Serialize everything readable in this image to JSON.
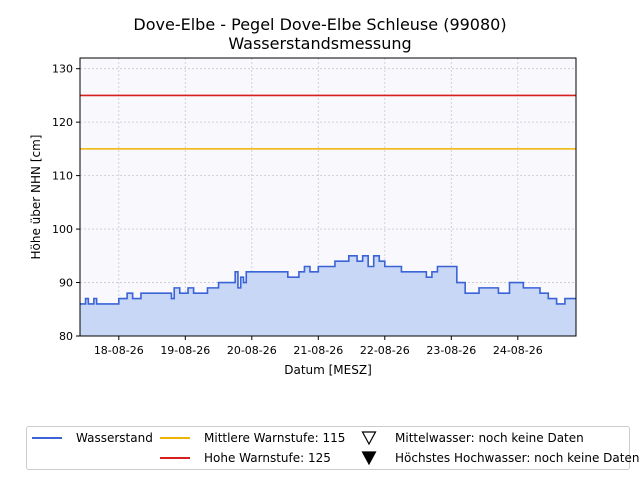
{
  "chart_data": {
    "type": "area",
    "title": "Dove-Elbe - Pegel Dove-Elbe Schleuse (99080)",
    "subtitle": "Wasserstandsmessung",
    "xlabel": "Datum [MESZ]",
    "ylabel": "Höhe über NHN [cm]",
    "ylim": [
      80,
      132
    ],
    "yticks": [
      80,
      90,
      100,
      110,
      120,
      130
    ],
    "xlim": [
      "2026-08-17 10:00",
      "2026-08-24 21:00"
    ],
    "xticks": [
      "18-08-26",
      "19-08-26",
      "20-08-26",
      "21-08-26",
      "22-08-26",
      "23-08-26",
      "24-08-26"
    ],
    "xtick_dates": [
      "2026-08-18 00:00",
      "2026-08-19 00:00",
      "2026-08-20 00:00",
      "2026-08-21 00:00",
      "2026-08-22 00:00",
      "2026-08-23 00:00",
      "2026-08-24 00:00"
    ],
    "grid": true,
    "legend_position": "bottom",
    "series": [
      {
        "name": "Wasserstand",
        "color": "#3a63d6",
        "fill": "#c8d7f5",
        "x": [
          "2026-08-17 10:00",
          "2026-08-17 12:00",
          "2026-08-17 13:00",
          "2026-08-17 15:00",
          "2026-08-17 16:00",
          "2026-08-17 18:00",
          "2026-08-17 20:00",
          "2026-08-18 00:00",
          "2026-08-18 03:00",
          "2026-08-18 05:00",
          "2026-08-18 06:00",
          "2026-08-18 08:00",
          "2026-08-18 11:00",
          "2026-08-18 14:00",
          "2026-08-18 17:00",
          "2026-08-18 19:00",
          "2026-08-18 20:00",
          "2026-08-18 22:00",
          "2026-08-19 01:00",
          "2026-08-19 03:00",
          "2026-08-19 06:00",
          "2026-08-19 08:00",
          "2026-08-19 12:00",
          "2026-08-19 15:00",
          "2026-08-19 17:00",
          "2026-08-19 18:00",
          "2026-08-19 19:00",
          "2026-08-19 20:00",
          "2026-08-19 21:00",
          "2026-08-19 22:00",
          "2026-08-20 00:00",
          "2026-08-20 02:00",
          "2026-08-20 03:00",
          "2026-08-20 04:00",
          "2026-08-20 06:00",
          "2026-08-20 09:00",
          "2026-08-20 13:00",
          "2026-08-20 16:00",
          "2026-08-20 17:00",
          "2026-08-20 19:00",
          "2026-08-20 21:00",
          "2026-08-21 00:00",
          "2026-08-21 03:00",
          "2026-08-21 06:00",
          "2026-08-21 09:00",
          "2026-08-21 11:00",
          "2026-08-21 14:00",
          "2026-08-21 16:00",
          "2026-08-21 18:00",
          "2026-08-21 20:00",
          "2026-08-21 22:00",
          "2026-08-22 00:00",
          "2026-08-22 03:00",
          "2026-08-22 06:00",
          "2026-08-22 09:00",
          "2026-08-22 12:00",
          "2026-08-22 15:00",
          "2026-08-22 17:00",
          "2026-08-22 19:00",
          "2026-08-22 21:00",
          "2026-08-22 23:00",
          "2026-08-23 02:00",
          "2026-08-23 05:00",
          "2026-08-23 08:00",
          "2026-08-23 10:00",
          "2026-08-23 12:00",
          "2026-08-23 15:00",
          "2026-08-23 17:00",
          "2026-08-23 19:00",
          "2026-08-23 21:00",
          "2026-08-24 00:00",
          "2026-08-24 02:00",
          "2026-08-24 05:00",
          "2026-08-24 08:00",
          "2026-08-24 11:00",
          "2026-08-24 14:00",
          "2026-08-24 17:00",
          "2026-08-24 21:00"
        ],
        "y": [
          86,
          87,
          86,
          87,
          86,
          86,
          86,
          87,
          88,
          87,
          87,
          88,
          88,
          88,
          88,
          87,
          89,
          88,
          89,
          88,
          88,
          89,
          90,
          90,
          90,
          92,
          89,
          91,
          90,
          92,
          92,
          92,
          92,
          92,
          92,
          92,
          91,
          91,
          92,
          93,
          92,
          93,
          93,
          94,
          94,
          95,
          94,
          95,
          93,
          95,
          94,
          93,
          93,
          92,
          92,
          92,
          91,
          92,
          93,
          93,
          93,
          90,
          88,
          88,
          89,
          89,
          89,
          88,
          88,
          90,
          90,
          89,
          89,
          88,
          87,
          86,
          87,
          87
        ]
      }
    ],
    "reference_lines": [
      {
        "name": "Mittlere Warnstufe: 115",
        "value": 115,
        "color": "#f0b400"
      },
      {
        "name": "Hohe Warnstufe: 125",
        "value": 125,
        "color": "#d62020"
      }
    ],
    "markers": [
      {
        "name": "Mittelwasser: noch keine Daten",
        "symbol": "triangle-down-open"
      },
      {
        "name": "Höchstes Hochwasser: noch keine Daten",
        "symbol": "triangle-down-filled"
      }
    ]
  }
}
